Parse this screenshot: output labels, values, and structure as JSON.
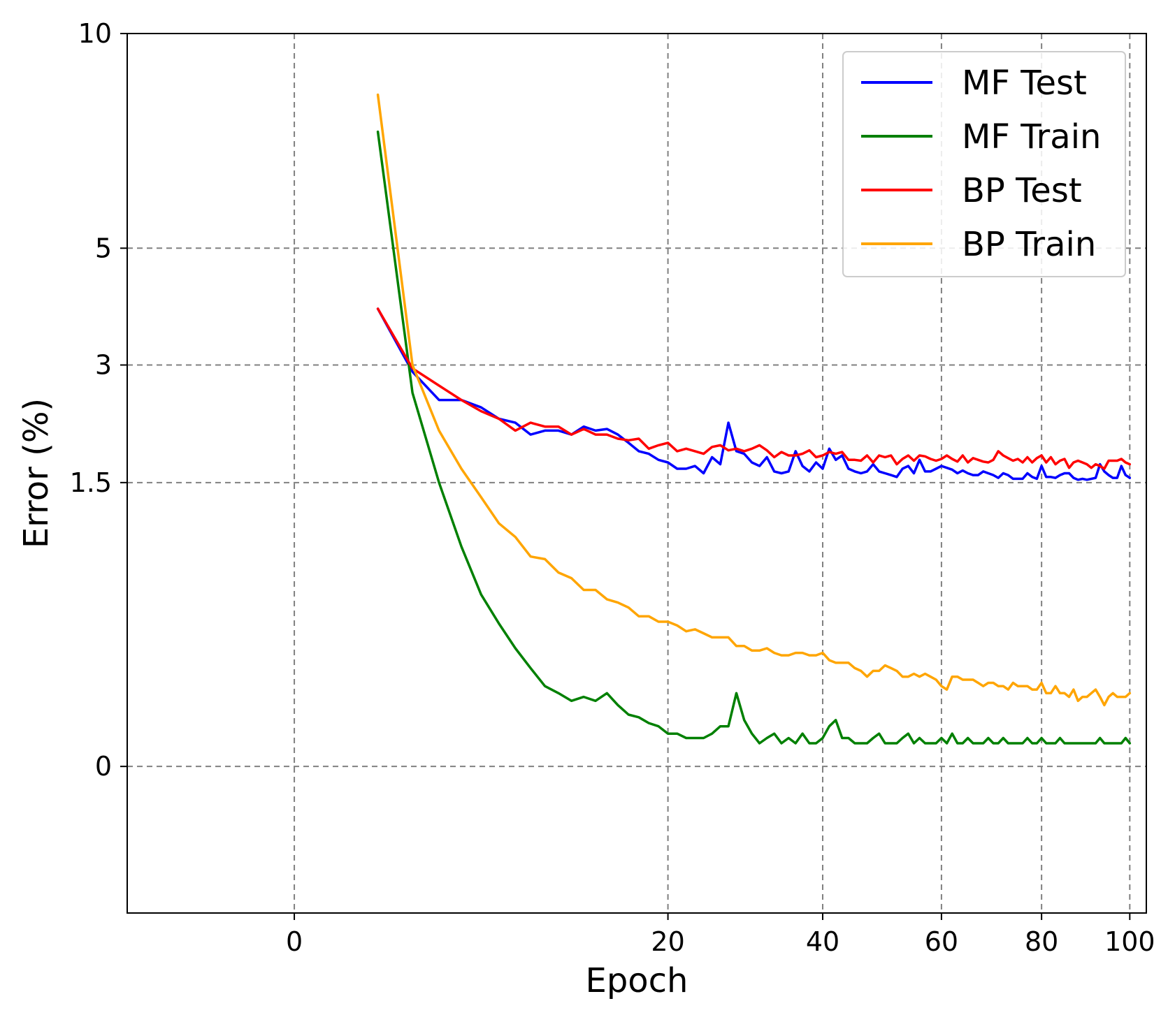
{
  "chart_data": {
    "type": "line",
    "xlabel": "Epoch",
    "ylabel": "Error (%)",
    "xlim": [
      -4,
      104
    ],
    "ylim": [
      -0.4,
      10
    ],
    "x_scale": "sqrt",
    "y_scale": "sqrt",
    "x_ticks": [
      0,
      20,
      40,
      60,
      80,
      100
    ],
    "y_ticks": [
      0,
      1.5,
      3,
      5,
      10
    ],
    "y_tick_labels": [
      "0",
      "1.5",
      "3",
      "5",
      "10"
    ],
    "grid": true,
    "legend_position": "top-right",
    "series": [
      {
        "name": "MF Test",
        "color": "#0000ff",
        "x": [
          1,
          2,
          3,
          4,
          5,
          6,
          7,
          8,
          9,
          10,
          11,
          12,
          13,
          14,
          15,
          16,
          17,
          18,
          19,
          20,
          21,
          22,
          23,
          24,
          25,
          26,
          27,
          28,
          29,
          30,
          31,
          32,
          33,
          34,
          35,
          36,
          37,
          38,
          39,
          40,
          41,
          42,
          43,
          44,
          45,
          46,
          47,
          48,
          49,
          50,
          51,
          52,
          53,
          54,
          55,
          56,
          57,
          58,
          59,
          60,
          61,
          62,
          63,
          64,
          65,
          66,
          67,
          68,
          69,
          70,
          71,
          72,
          73,
          74,
          75,
          76,
          77,
          78,
          79,
          80,
          81,
          82,
          83,
          84,
          85,
          86,
          87,
          88,
          89,
          90,
          91,
          92,
          93,
          94,
          95,
          96,
          97,
          98,
          99,
          100
        ],
        "values": [
          3.9,
          2.9,
          2.5,
          2.5,
          2.4,
          2.25,
          2.2,
          2.05,
          2.1,
          2.1,
          2.05,
          2.15,
          2.1,
          2.12,
          2.05,
          1.95,
          1.85,
          1.82,
          1.75,
          1.72,
          1.65,
          1.65,
          1.68,
          1.6,
          1.78,
          1.7,
          2.2,
          1.85,
          1.82,
          1.72,
          1.68,
          1.78,
          1.62,
          1.6,
          1.62,
          1.85,
          1.68,
          1.62,
          1.72,
          1.65,
          1.88,
          1.75,
          1.8,
          1.65,
          1.62,
          1.6,
          1.62,
          1.7,
          1.62,
          1.6,
          1.58,
          1.56,
          1.65,
          1.68,
          1.6,
          1.75,
          1.62,
          1.62,
          1.65,
          1.68,
          1.66,
          1.64,
          1.6,
          1.63,
          1.6,
          1.58,
          1.58,
          1.62,
          1.6,
          1.58,
          1.55,
          1.6,
          1.58,
          1.54,
          1.54,
          1.54,
          1.6,
          1.56,
          1.54,
          1.68,
          1.56,
          1.56,
          1.55,
          1.58,
          1.6,
          1.6,
          1.55,
          1.53,
          1.54,
          1.53,
          1.54,
          1.55,
          1.7,
          1.62,
          1.58,
          1.55,
          1.55,
          1.68,
          1.58,
          1.55
        ]
      },
      {
        "name": "MF Train",
        "color": "#008000",
        "x": [
          1,
          2,
          3,
          4,
          5,
          6,
          7,
          8,
          9,
          10,
          11,
          12,
          13,
          14,
          15,
          16,
          17,
          18,
          19,
          20,
          21,
          22,
          23,
          24,
          25,
          26,
          27,
          28,
          29,
          30,
          31,
          32,
          33,
          34,
          35,
          36,
          37,
          38,
          39,
          40,
          41,
          42,
          43,
          44,
          45,
          46,
          47,
          48,
          49,
          50,
          51,
          52,
          53,
          54,
          55,
          56,
          57,
          58,
          59,
          60,
          61,
          62,
          63,
          64,
          65,
          66,
          67,
          68,
          69,
          70,
          71,
          72,
          73,
          74,
          75,
          76,
          77,
          78,
          79,
          80,
          81,
          82,
          83,
          84,
          85,
          86,
          87,
          88,
          89,
          90,
          91,
          92,
          93,
          94,
          95,
          96,
          97,
          98,
          99,
          100
        ],
        "values": [
          7.5,
          2.6,
          1.5,
          0.9,
          0.55,
          0.38,
          0.26,
          0.18,
          0.12,
          0.1,
          0.08,
          0.09,
          0.08,
          0.1,
          0.07,
          0.05,
          0.045,
          0.035,
          0.03,
          0.02,
          0.02,
          0.015,
          0.015,
          0.015,
          0.02,
          0.03,
          0.03,
          0.1,
          0.04,
          0.02,
          0.01,
          0.015,
          0.02,
          0.01,
          0.015,
          0.01,
          0.02,
          0.01,
          0.01,
          0.015,
          0.03,
          0.04,
          0.015,
          0.015,
          0.01,
          0.01,
          0.01,
          0.015,
          0.02,
          0.01,
          0.01,
          0.01,
          0.015,
          0.02,
          0.01,
          0.015,
          0.01,
          0.01,
          0.01,
          0.015,
          0.01,
          0.02,
          0.01,
          0.01,
          0.015,
          0.01,
          0.01,
          0.01,
          0.015,
          0.01,
          0.01,
          0.015,
          0.01,
          0.01,
          0.01,
          0.01,
          0.015,
          0.01,
          0.01,
          0.015,
          0.01,
          0.01,
          0.01,
          0.015,
          0.01,
          0.01,
          0.01,
          0.01,
          0.01,
          0.01,
          0.01,
          0.01,
          0.015,
          0.01,
          0.01,
          0.01,
          0.01,
          0.01,
          0.015,
          0.01
        ]
      },
      {
        "name": "BP Test",
        "color": "#ff0000",
        "x": [
          1,
          2,
          3,
          4,
          5,
          6,
          7,
          8,
          9,
          10,
          11,
          12,
          13,
          14,
          15,
          16,
          17,
          18,
          19,
          20,
          21,
          22,
          23,
          24,
          25,
          26,
          27,
          28,
          29,
          30,
          31,
          32,
          33,
          34,
          35,
          36,
          37,
          38,
          39,
          40,
          41,
          42,
          43,
          44,
          45,
          46,
          47,
          48,
          49,
          50,
          51,
          52,
          53,
          54,
          55,
          56,
          57,
          58,
          59,
          60,
          61,
          62,
          63,
          64,
          65,
          66,
          67,
          68,
          69,
          70,
          71,
          72,
          73,
          74,
          75,
          76,
          77,
          78,
          79,
          80,
          81,
          82,
          83,
          84,
          85,
          86,
          87,
          88,
          89,
          90,
          91,
          92,
          93,
          94,
          95,
          96,
          97,
          98,
          99,
          100
        ],
        "values": [
          3.9,
          2.95,
          2.7,
          2.5,
          2.35,
          2.25,
          2.1,
          2.2,
          2.15,
          2.15,
          2.05,
          2.12,
          2.05,
          2.05,
          2.0,
          1.98,
          2.0,
          1.88,
          1.92,
          1.95,
          1.85,
          1.88,
          1.85,
          1.82,
          1.9,
          1.92,
          1.86,
          1.88,
          1.85,
          1.88,
          1.92,
          1.86,
          1.78,
          1.84,
          1.8,
          1.8,
          1.82,
          1.86,
          1.78,
          1.8,
          1.84,
          1.82,
          1.84,
          1.75,
          1.75,
          1.74,
          1.8,
          1.72,
          1.8,
          1.78,
          1.8,
          1.7,
          1.76,
          1.8,
          1.74,
          1.8,
          1.79,
          1.76,
          1.74,
          1.76,
          1.8,
          1.76,
          1.73,
          1.8,
          1.72,
          1.77,
          1.75,
          1.73,
          1.72,
          1.75,
          1.85,
          1.8,
          1.77,
          1.74,
          1.76,
          1.72,
          1.78,
          1.72,
          1.77,
          1.8,
          1.72,
          1.78,
          1.7,
          1.74,
          1.76,
          1.66,
          1.72,
          1.74,
          1.72,
          1.7,
          1.66,
          1.7,
          1.68,
          1.65,
          1.74,
          1.74,
          1.74,
          1.76,
          1.72,
          1.7
        ]
      },
      {
        "name": "BP Train",
        "color": "#ffa500",
        "x": [
          1,
          2,
          3,
          4,
          5,
          6,
          7,
          8,
          9,
          10,
          11,
          12,
          13,
          14,
          15,
          16,
          17,
          18,
          19,
          20,
          21,
          22,
          23,
          24,
          25,
          26,
          27,
          28,
          29,
          30,
          31,
          32,
          33,
          34,
          35,
          36,
          37,
          38,
          39,
          40,
          41,
          42,
          43,
          44,
          45,
          46,
          47,
          48,
          49,
          50,
          51,
          52,
          53,
          54,
          55,
          56,
          57,
          58,
          59,
          60,
          61,
          62,
          63,
          64,
          65,
          66,
          67,
          68,
          69,
          70,
          71,
          72,
          73,
          74,
          75,
          76,
          77,
          78,
          79,
          80,
          81,
          82,
          83,
          84,
          85,
          86,
          87,
          88,
          89,
          90,
          91,
          92,
          93,
          94,
          95,
          96,
          97,
          98,
          99,
          100
        ],
        "values": [
          8.4,
          3.0,
          2.1,
          1.65,
          1.35,
          1.1,
          0.98,
          0.82,
          0.8,
          0.7,
          0.66,
          0.58,
          0.58,
          0.52,
          0.5,
          0.47,
          0.42,
          0.42,
          0.39,
          0.39,
          0.37,
          0.34,
          0.35,
          0.33,
          0.31,
          0.31,
          0.31,
          0.27,
          0.27,
          0.25,
          0.25,
          0.26,
          0.24,
          0.23,
          0.23,
          0.24,
          0.24,
          0.23,
          0.23,
          0.24,
          0.21,
          0.2,
          0.2,
          0.2,
          0.18,
          0.17,
          0.15,
          0.17,
          0.17,
          0.19,
          0.18,
          0.17,
          0.15,
          0.15,
          0.16,
          0.15,
          0.16,
          0.15,
          0.14,
          0.12,
          0.11,
          0.15,
          0.15,
          0.14,
          0.14,
          0.14,
          0.13,
          0.12,
          0.13,
          0.13,
          0.12,
          0.12,
          0.11,
          0.13,
          0.12,
          0.12,
          0.12,
          0.11,
          0.11,
          0.13,
          0.1,
          0.1,
          0.12,
          0.1,
          0.1,
          0.09,
          0.11,
          0.08,
          0.09,
          0.09,
          0.1,
          0.11,
          0.09,
          0.07,
          0.09,
          0.1,
          0.09,
          0.09,
          0.09,
          0.1
        ]
      }
    ]
  }
}
